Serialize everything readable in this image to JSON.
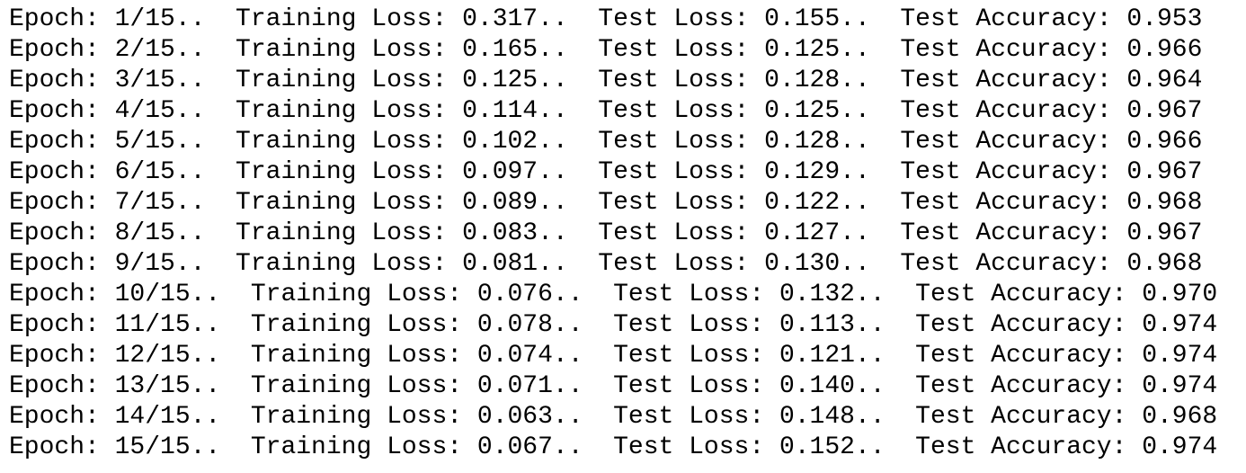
{
  "lines": [
    "Epoch: 1/15..  Training Loss: 0.317..  Test Loss: 0.155..  Test Accuracy: 0.953",
    "Epoch: 2/15..  Training Loss: 0.165..  Test Loss: 0.125..  Test Accuracy: 0.966",
    "Epoch: 3/15..  Training Loss: 0.125..  Test Loss: 0.128..  Test Accuracy: 0.964",
    "Epoch: 4/15..  Training Loss: 0.114..  Test Loss: 0.125..  Test Accuracy: 0.967",
    "Epoch: 5/15..  Training Loss: 0.102..  Test Loss: 0.128..  Test Accuracy: 0.966",
    "Epoch: 6/15..  Training Loss: 0.097..  Test Loss: 0.129..  Test Accuracy: 0.967",
    "Epoch: 7/15..  Training Loss: 0.089..  Test Loss: 0.122..  Test Accuracy: 0.968",
    "Epoch: 8/15..  Training Loss: 0.083..  Test Loss: 0.127..  Test Accuracy: 0.967",
    "Epoch: 9/15..  Training Loss: 0.081..  Test Loss: 0.130..  Test Accuracy: 0.968",
    "Epoch: 10/15..  Training Loss: 0.076..  Test Loss: 0.132..  Test Accuracy: 0.970",
    "Epoch: 11/15..  Training Loss: 0.078..  Test Loss: 0.113..  Test Accuracy: 0.974",
    "Epoch: 12/15..  Training Loss: 0.074..  Test Loss: 0.121..  Test Accuracy: 0.974",
    "Epoch: 13/15..  Training Loss: 0.071..  Test Loss: 0.140..  Test Accuracy: 0.974",
    "Epoch: 14/15..  Training Loss: 0.063..  Test Loss: 0.148..  Test Accuracy: 0.968",
    "Epoch: 15/15..  Training Loss: 0.067..  Test Loss: 0.152..  Test Accuracy: 0.974"
  ]
}
